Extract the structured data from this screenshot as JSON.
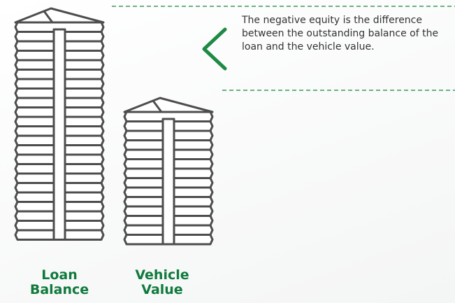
{
  "stacks": [
    {
      "label": "Loan Balance"
    },
    {
      "label": "Vehicle Value"
    }
  ],
  "annotation": "The negative equity is the difference between the outstanding balance of the loan and the vehicle value."
}
